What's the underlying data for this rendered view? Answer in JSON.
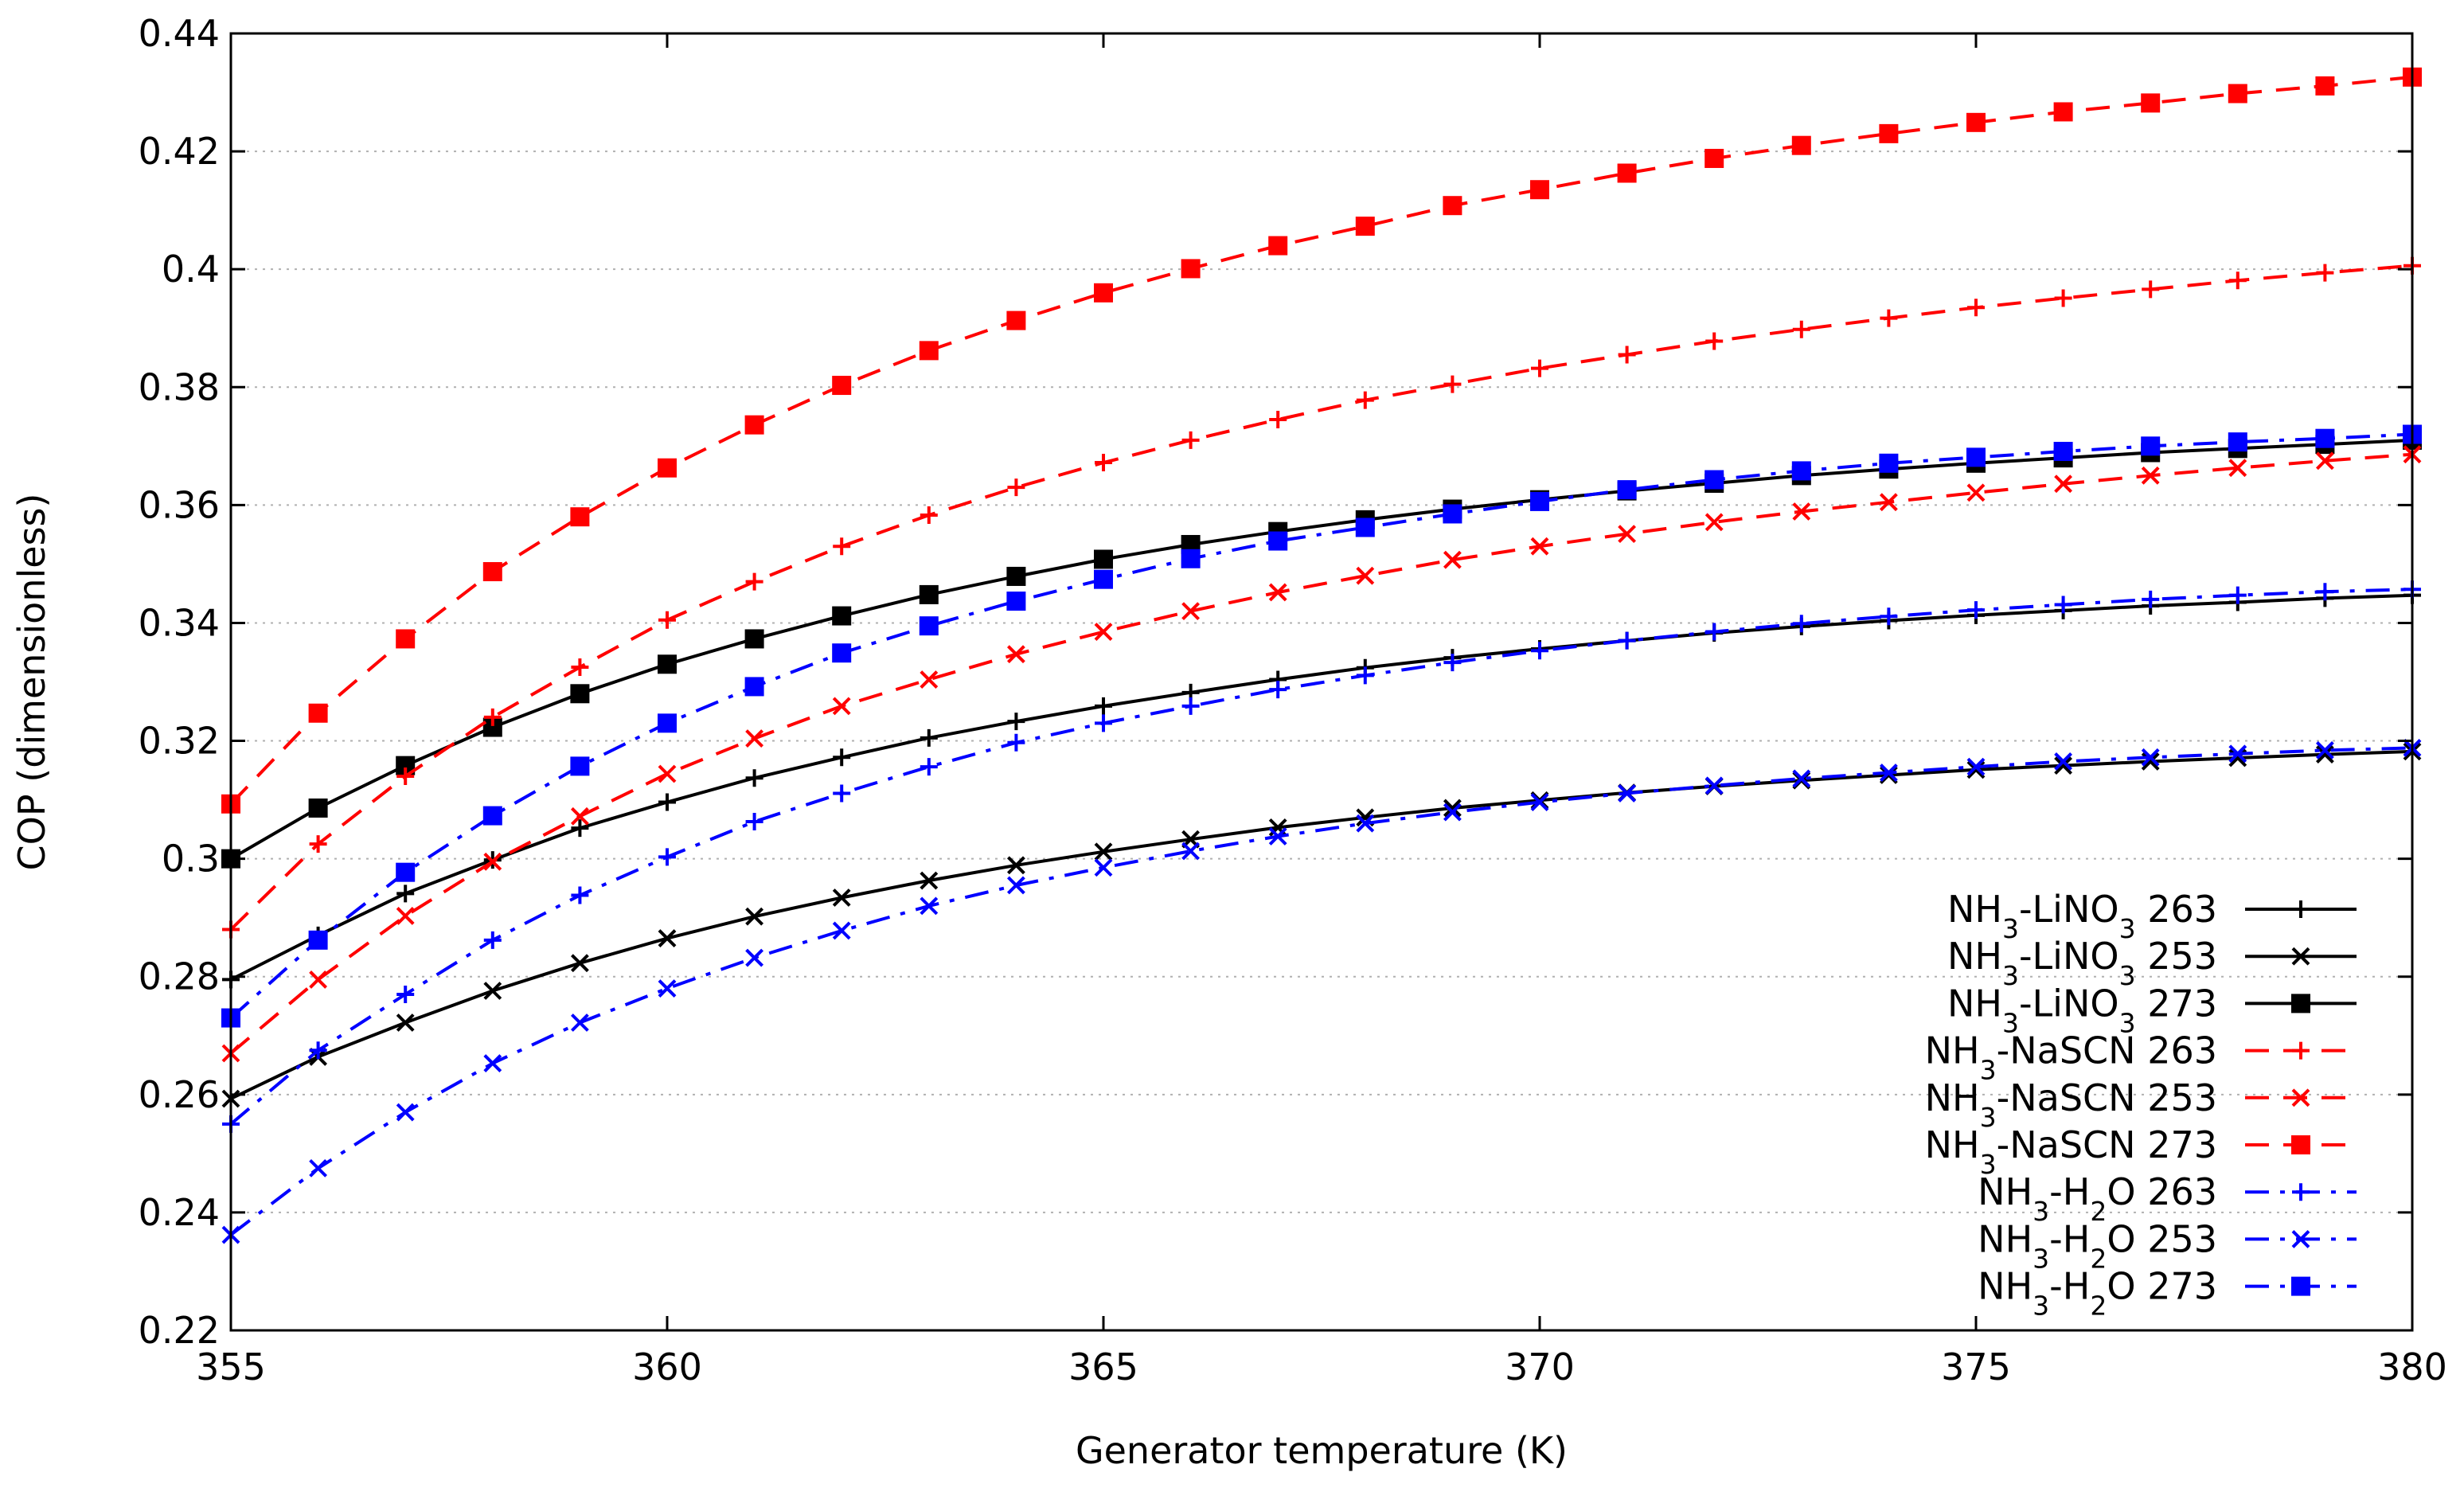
{
  "chart_data": {
    "type": "line",
    "title": "",
    "xlabel": "Generator temperature (K)",
    "ylabel": "COP (dimensionless)",
    "xlim": [
      355,
      380
    ],
    "ylim": [
      0.22,
      0.44
    ],
    "grid": "horizontal-dotted",
    "legend_position": "bottom-right",
    "x": [
      355,
      356,
      357,
      358,
      359,
      360,
      361,
      362,
      363,
      364,
      365,
      366,
      367,
      368,
      369,
      370,
      371,
      372,
      373,
      374,
      375,
      376,
      377,
      378,
      379,
      380
    ],
    "x_ticks": [
      355,
      360,
      365,
      370,
      375,
      380
    ],
    "y_ticks": [
      0.22,
      0.24,
      0.26,
      0.28,
      0.3,
      0.32,
      0.34,
      0.36,
      0.38,
      0.4,
      0.42,
      0.44
    ],
    "x_tick_labels": [
      "355",
      "360",
      "365",
      "370",
      "375",
      "380"
    ],
    "y_tick_labels": [
      "0.22",
      "0.24",
      "0.26",
      "0.28",
      "0.3",
      "0.32",
      "0.34",
      "0.36",
      "0.38",
      "0.4",
      "0.42",
      "0.44"
    ],
    "series": [
      {
        "id": "linO3-263",
        "prefix": "NH",
        "sub1": "3",
        "mid": "-LiNO",
        "sub2": "3",
        "suffix": " 263",
        "color": "#000000",
        "dash": "solid",
        "marker": "plus",
        "values": [
          0.2795,
          0.287,
          0.2941,
          0.2998,
          0.3052,
          0.3096,
          0.3137,
          0.3172,
          0.3205,
          0.3233,
          0.3259,
          0.3282,
          0.3304,
          0.3324,
          0.3341,
          0.3356,
          0.337,
          0.3383,
          0.3394,
          0.3404,
          0.3413,
          0.3421,
          0.3429,
          0.3435,
          0.3442,
          0.3447
        ]
      },
      {
        "id": "linO3-253",
        "prefix": "NH",
        "sub1": "3",
        "mid": "-LiNO",
        "sub2": "3",
        "suffix": " 253",
        "color": "#000000",
        "dash": "solid",
        "marker": "cross",
        "values": [
          0.2593,
          0.2664,
          0.2722,
          0.2776,
          0.2823,
          0.2865,
          0.2902,
          0.2934,
          0.2963,
          0.2989,
          0.3012,
          0.3033,
          0.3053,
          0.307,
          0.3086,
          0.3099,
          0.3112,
          0.3123,
          0.3133,
          0.3142,
          0.3151,
          0.3158,
          0.3165,
          0.3171,
          0.3177,
          0.3182
        ]
      },
      {
        "id": "linO3-273",
        "prefix": "NH",
        "sub1": "3",
        "mid": "-LiNO",
        "sub2": "3",
        "suffix": " 273",
        "color": "#000000",
        "dash": "solid",
        "marker": "square",
        "values": [
          0.3,
          0.3086,
          0.3158,
          0.3223,
          0.328,
          0.333,
          0.3373,
          0.3412,
          0.3448,
          0.3479,
          0.3508,
          0.3533,
          0.3555,
          0.3575,
          0.3593,
          0.3609,
          0.3624,
          0.3637,
          0.365,
          0.3661,
          0.3671,
          0.368,
          0.3689,
          0.3696,
          0.3703,
          0.371
        ]
      },
      {
        "id": "nascn-263",
        "prefix": "NH",
        "sub1": "3",
        "mid": "-NaSCN",
        "sub2": "",
        "suffix": " 263",
        "color": "#ff0000",
        "dash": "dash",
        "marker": "plus",
        "values": [
          0.288,
          0.3025,
          0.314,
          0.324,
          0.3325,
          0.3405,
          0.347,
          0.353,
          0.3583,
          0.363,
          0.3672,
          0.371,
          0.3745,
          0.3778,
          0.3805,
          0.3832,
          0.3855,
          0.3878,
          0.3898,
          0.3917,
          0.3935,
          0.3951,
          0.3966,
          0.3981,
          0.3994,
          0.4006
        ]
      },
      {
        "id": "nascn-253",
        "prefix": "NH",
        "sub1": "3",
        "mid": "-NaSCN",
        "sub2": "",
        "suffix": " 253",
        "color": "#ff0000",
        "dash": "dash",
        "marker": "cross",
        "values": [
          0.267,
          0.2795,
          0.2903,
          0.2995,
          0.3072,
          0.3144,
          0.3204,
          0.3259,
          0.3304,
          0.3347,
          0.3385,
          0.342,
          0.3452,
          0.348,
          0.3507,
          0.353,
          0.3551,
          0.3571,
          0.3589,
          0.3605,
          0.3621,
          0.3636,
          0.365,
          0.3663,
          0.3675,
          0.3686
        ]
      },
      {
        "id": "nascn-273",
        "prefix": "NH",
        "sub1": "3",
        "mid": "-NaSCN",
        "sub2": "",
        "suffix": " 273",
        "color": "#ff0000",
        "dash": "dash",
        "marker": "square",
        "values": [
          0.3093,
          0.3247,
          0.3373,
          0.3487,
          0.358,
          0.3663,
          0.3736,
          0.3803,
          0.3862,
          0.3913,
          0.396,
          0.4001,
          0.404,
          0.4073,
          0.4108,
          0.4135,
          0.4163,
          0.4188,
          0.421,
          0.423,
          0.4249,
          0.4267,
          0.4282,
          0.4298,
          0.4311,
          0.4326
        ]
      },
      {
        "id": "h2o-263",
        "prefix": "NH",
        "sub1": "3",
        "mid": "-H",
        "sub2": "2",
        "suffix": "O 263",
        "color": "#0000ff",
        "dash": "dashdot",
        "marker": "plus",
        "values": [
          0.255,
          0.2675,
          0.277,
          0.2862,
          0.2938,
          0.3003,
          0.3063,
          0.3111,
          0.3156,
          0.3197,
          0.323,
          0.3259,
          0.3287,
          0.3311,
          0.3333,
          0.3353,
          0.337,
          0.3385,
          0.3399,
          0.3411,
          0.3422,
          0.3431,
          0.344,
          0.3447,
          0.3453,
          0.3457
        ]
      },
      {
        "id": "h2o-253",
        "prefix": "NH",
        "sub1": "3",
        "mid": "-H",
        "sub2": "2",
        "suffix": "O 253",
        "color": "#0000ff",
        "dash": "dashdot",
        "marker": "cross",
        "values": [
          0.2362,
          0.2475,
          0.257,
          0.2653,
          0.2722,
          0.278,
          0.2832,
          0.2878,
          0.292,
          0.2955,
          0.2985,
          0.3013,
          0.3038,
          0.306,
          0.3079,
          0.3096,
          0.3111,
          0.3124,
          0.3136,
          0.3146,
          0.3156,
          0.3165,
          0.3172,
          0.3178,
          0.3184,
          0.3188
        ]
      },
      {
        "id": "h2o-273",
        "prefix": "NH",
        "sub1": "3",
        "mid": "-H",
        "sub2": "2",
        "suffix": "O 273",
        "color": "#0000ff",
        "dash": "dashdot",
        "marker": "square",
        "values": [
          0.273,
          0.2862,
          0.2977,
          0.3073,
          0.3157,
          0.323,
          0.3292,
          0.3349,
          0.3395,
          0.3437,
          0.3474,
          0.3509,
          0.3539,
          0.3562,
          0.3585,
          0.3606,
          0.3626,
          0.3643,
          0.3658,
          0.3671,
          0.3681,
          0.3691,
          0.37,
          0.3707,
          0.3713,
          0.372
        ]
      }
    ]
  }
}
